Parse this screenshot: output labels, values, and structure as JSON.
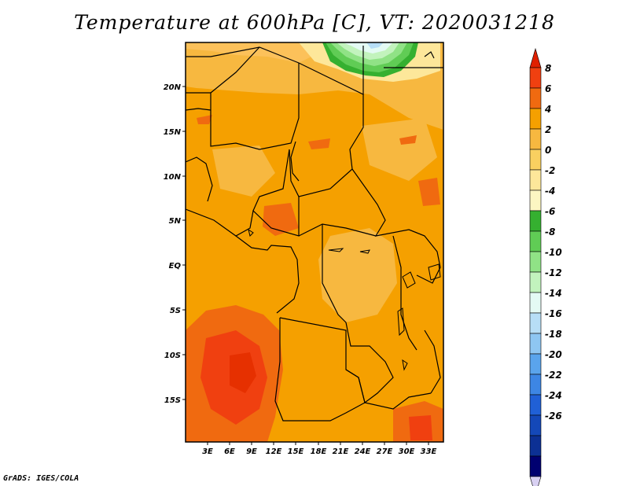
{
  "title": "Temperature at 600hPa [C], VT: 2020031218",
  "footer": "GrADS: IGES/COLA",
  "map": {
    "lat_labels": [
      "20N",
      "15N",
      "10N",
      "5N",
      "EQ",
      "5S",
      "10S",
      "15S"
    ],
    "lon_labels": [
      "3E",
      "6E",
      "9E",
      "12E",
      "15E",
      "18E",
      "21E",
      "24E",
      "27E",
      "30E",
      "33E"
    ]
  },
  "colorbar": {
    "labels": [
      "8",
      "6",
      "4",
      "2",
      "0",
      "-2",
      "-4",
      "-6",
      "-8",
      "-10",
      "-12",
      "-14",
      "-16",
      "-18",
      "-20",
      "-22",
      "-24",
      "-26"
    ],
    "colors": [
      "#e02000",
      "#f04010",
      "#f06a10",
      "#f5a000",
      "#f7b840",
      "#f9d060",
      "#fde79a",
      "#fcf6c2",
      "#35b030",
      "#60cc55",
      "#90e286",
      "#c2f3bd",
      "#e4faf4",
      "#b7def6",
      "#8ec6f2",
      "#5aa4ec",
      "#3d86e4",
      "#2060d6",
      "#1448b8",
      "#0c3094",
      "#000070",
      "#d8d0f2"
    ]
  }
}
